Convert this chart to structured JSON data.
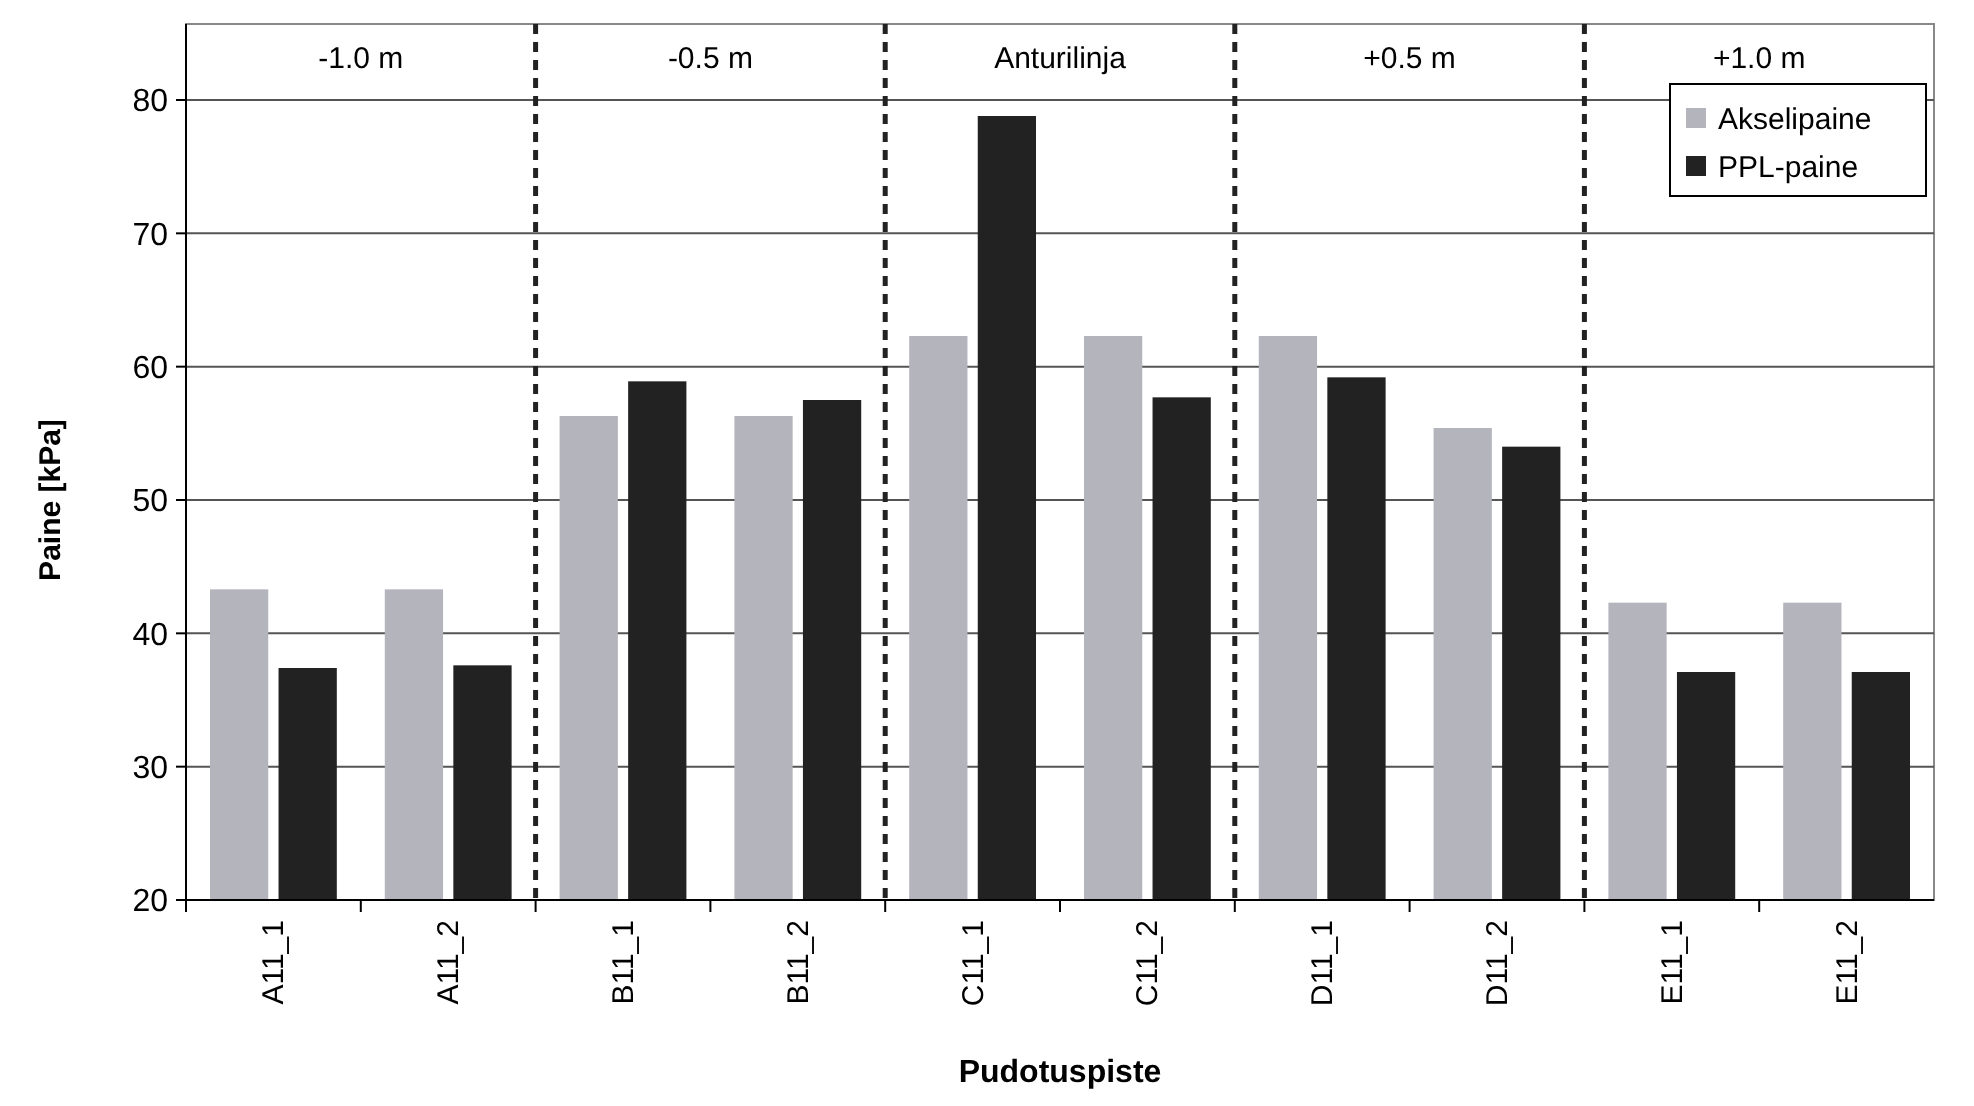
{
  "chart_data": {
    "type": "bar",
    "xlabel": "Pudotuspiste",
    "ylabel": "Paine [kPa]",
    "categories": [
      "A11_1",
      "A11_2",
      "B11_1",
      "B11_2",
      "C11_1",
      "C11_2",
      "D11_1",
      "D11_2",
      "E11_1",
      "E11_2"
    ],
    "series": [
      {
        "name": "Akselipaine",
        "color": "#b4b4bc",
        "values": [
          43.3,
          43.3,
          56.3,
          56.3,
          62.3,
          62.3,
          62.3,
          55.4,
          42.3,
          42.3
        ]
      },
      {
        "name": "PPL-paine",
        "color": "#222222",
        "values": [
          37.4,
          37.6,
          58.9,
          57.5,
          78.8,
          57.7,
          59.2,
          54.0,
          37.1,
          37.1
        ]
      }
    ],
    "ylim": [
      20,
      80
    ],
    "yticks": [
      20,
      30,
      40,
      50,
      60,
      70,
      80
    ],
    "grid": "y",
    "legend": "top right",
    "annotations": [
      "-1.0 m",
      "-0.5 m",
      "Anturilinja",
      "+0.5 m",
      "+1.0 m"
    ]
  }
}
